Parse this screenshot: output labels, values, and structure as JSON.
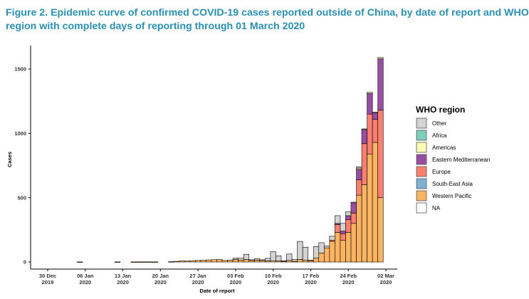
{
  "figure": {
    "title_line1": "Figure 2. Epidemic curve of confirmed COVID-19 cases reported outside of China, by date of report and WHO",
    "title_line2": "region with complete days of reporting through 01 March 2020"
  },
  "chart_data": {
    "type": "bar",
    "stacked": true,
    "xlabel": "Date of report",
    "ylabel": "Cases",
    "ylim": [
      0,
      1650
    ],
    "yticks": [
      0,
      500,
      1000,
      1500
    ],
    "x_start": "2019-12-30",
    "x_end": "2020-03-02",
    "xticks": [
      {
        "date": "2019-12-30",
        "line1": "30 Dec",
        "line2": "2019"
      },
      {
        "date": "2020-01-06",
        "line1": "06 Jan",
        "line2": "2020"
      },
      {
        "date": "2020-01-13",
        "line1": "13 Jan",
        "line2": "2020"
      },
      {
        "date": "2020-01-20",
        "line1": "20 Jan",
        "line2": "2020"
      },
      {
        "date": "2020-01-27",
        "line1": "27 Jan",
        "line2": "2020"
      },
      {
        "date": "2020-02-03",
        "line1": "03 Feb",
        "line2": "2020"
      },
      {
        "date": "2020-02-10",
        "line1": "10 Feb",
        "line2": "2020"
      },
      {
        "date": "2020-02-17",
        "line1": "17 Feb",
        "line2": "2020"
      },
      {
        "date": "2020-02-24",
        "line1": "24 Feb",
        "line2": "2020"
      },
      {
        "date": "2020-03-02",
        "line1": "02 Mar",
        "line2": "2020"
      }
    ],
    "legend": {
      "title": "WHO region",
      "position": "right",
      "items": [
        {
          "name": "Other",
          "color": "#d3d3d3"
        },
        {
          "name": "Africa",
          "color": "#7fcdbb"
        },
        {
          "name": "Americas",
          "color": "#ffffb3"
        },
        {
          "name": "Eastern Mediterranean",
          "color": "#984ea3"
        },
        {
          "name": "Europe",
          "color": "#fb8072"
        },
        {
          "name": "South-East Asia",
          "color": "#80b1d3"
        },
        {
          "name": "Western Pacific",
          "color": "#fdb462"
        },
        {
          "name": "NA",
          "color": "#ffffff"
        }
      ]
    },
    "series_order": [
      "Western Pacific",
      "South-East Asia",
      "Europe",
      "Eastern Mediterranean",
      "Americas",
      "Africa",
      "Other"
    ],
    "bars": [
      {
        "date": "2020-01-05",
        "Western Pacific": 1
      },
      {
        "date": "2020-01-12",
        "Western Pacific": 1
      },
      {
        "date": "2020-01-15",
        "Western Pacific": 1
      },
      {
        "date": "2020-01-16",
        "Western Pacific": 1
      },
      {
        "date": "2020-01-17",
        "Western Pacific": 1
      },
      {
        "date": "2020-01-18",
        "Western Pacific": 1
      },
      {
        "date": "2020-01-19",
        "Western Pacific": 1
      },
      {
        "date": "2020-01-22",
        "Western Pacific": 3
      },
      {
        "date": "2020-01-23",
        "Western Pacific": 5
      },
      {
        "date": "2020-01-24",
        "Western Pacific": 9
      },
      {
        "date": "2020-01-25",
        "Western Pacific": 8
      },
      {
        "date": "2020-01-26",
        "Western Pacific": 10
      },
      {
        "date": "2020-01-27",
        "Western Pacific": 12
      },
      {
        "date": "2020-01-28",
        "Western Pacific": 14
      },
      {
        "date": "2020-01-29",
        "Western Pacific": 16
      },
      {
        "date": "2020-01-30",
        "Western Pacific": 18
      },
      {
        "date": "2020-01-31",
        "Western Pacific": 20
      },
      {
        "date": "2020-02-01",
        "Western Pacific": 12
      },
      {
        "date": "2020-02-02",
        "Western Pacific": 15
      },
      {
        "date": "2020-02-03",
        "Western Pacific": 20,
        "Other": 10
      },
      {
        "date": "2020-02-04",
        "Western Pacific": 15,
        "Other": 15
      },
      {
        "date": "2020-02-05",
        "Western Pacific": 20,
        "Other": 40
      },
      {
        "date": "2020-02-06",
        "Western Pacific": 12,
        "Other": 5
      },
      {
        "date": "2020-02-07",
        "Western Pacific": 15,
        "Other": 10
      },
      {
        "date": "2020-02-08",
        "Western Pacific": 12,
        "Other": 5
      },
      {
        "date": "2020-02-09",
        "Western Pacific": 8,
        "Other": 20
      },
      {
        "date": "2020-02-10",
        "Western Pacific": 10,
        "Other": 70
      },
      {
        "date": "2020-02-11",
        "Western Pacific": 8,
        "Other": 40
      },
      {
        "date": "2020-02-12",
        "Western Pacific": 5,
        "Other": 5
      },
      {
        "date": "2020-02-13",
        "Western Pacific": 12,
        "Other": 50
      },
      {
        "date": "2020-02-14",
        "Western Pacific": 5,
        "Other": 15
      },
      {
        "date": "2020-02-15",
        "Western Pacific": 20,
        "Other": 140
      },
      {
        "date": "2020-02-16",
        "Western Pacific": 15,
        "Other": 100
      },
      {
        "date": "2020-02-17",
        "Western Pacific": 10,
        "Other": 5
      },
      {
        "date": "2020-02-18",
        "Western Pacific": 30,
        "Other": 90
      },
      {
        "date": "2020-02-19",
        "Western Pacific": 70,
        "Other": 80
      },
      {
        "date": "2020-02-20",
        "Western Pacific": 110,
        "Other": 15
      },
      {
        "date": "2020-02-21",
        "Western Pacific": 160,
        "Europe": 10,
        "Other": 30
      },
      {
        "date": "2020-02-22",
        "Western Pacific": 230,
        "Europe": 60,
        "Eastern Mediterranean": 10,
        "Other": 60
      },
      {
        "date": "2020-02-23",
        "Western Pacific": 170,
        "Europe": 50,
        "Eastern Mediterranean": 20,
        "Other": 60
      },
      {
        "date": "2020-02-24",
        "Western Pacific": 230,
        "Europe": 100,
        "Eastern Mediterranean": 30,
        "Other": 30
      },
      {
        "date": "2020-02-25",
        "Western Pacific": 300,
        "Europe": 80,
        "Eastern Mediterranean": 80,
        "Americas": 5
      },
      {
        "date": "2020-02-26",
        "Western Pacific": 520,
        "Europe": 120,
        "Eastern Mediterranean": 80,
        "Americas": 10,
        "Other": 10
      },
      {
        "date": "2020-02-27",
        "Western Pacific": 600,
        "Europe": 320,
        "Eastern Mediterranean": 110,
        "Americas": 5
      },
      {
        "date": "2020-02-28",
        "Western Pacific": 840,
        "Europe": 310,
        "Eastern Mediterranean": 160,
        "Americas": 10
      },
      {
        "date": "2020-02-29",
        "Western Pacific": 930,
        "Europe": 180,
        "Eastern Mediterranean": 50,
        "Americas": 5
      },
      {
        "date": "2020-03-01",
        "Western Pacific": 500,
        "Europe": 680,
        "Eastern Mediterranean": 400,
        "Americas": 10
      }
    ]
  }
}
